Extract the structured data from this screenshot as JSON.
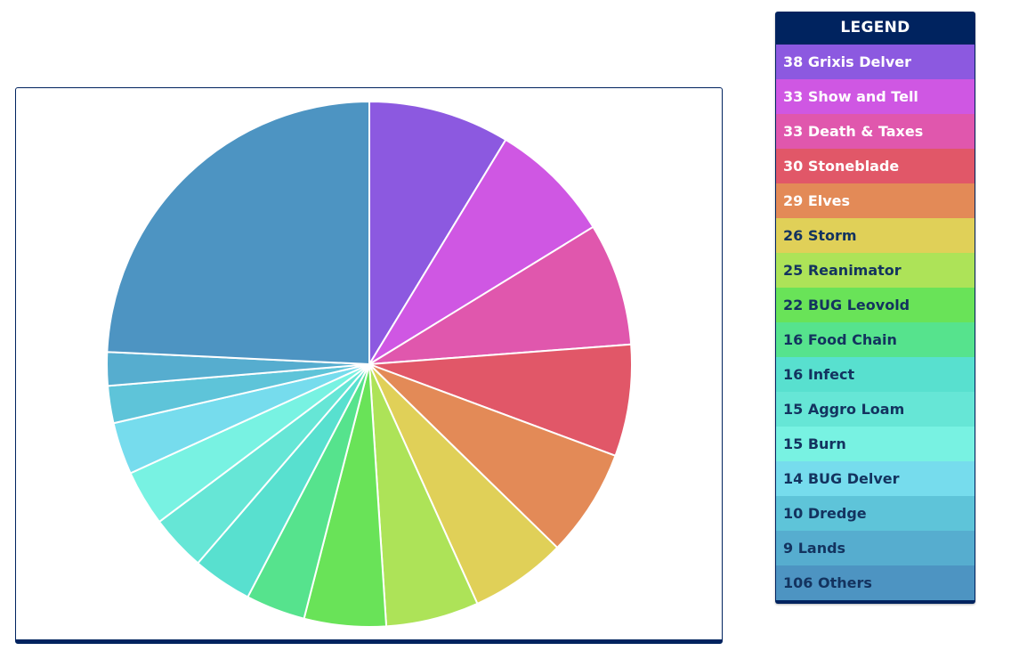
{
  "chart_data": {
    "type": "pie",
    "title": "",
    "legend_title": "LEGEND",
    "legend_position": "right",
    "slices": [
      {
        "label": "38 Grixis Delver",
        "value": 38,
        "color": "#8c59e0",
        "legend_text": "light"
      },
      {
        "label": "33 Show and Tell",
        "value": 33,
        "color": "#cf57e3",
        "legend_text": "light"
      },
      {
        "label": "33 Death & Taxes",
        "value": 33,
        "color": "#e057ad",
        "legend_text": "light"
      },
      {
        "label": "30 Stoneblade",
        "value": 30,
        "color": "#e15768",
        "legend_text": "light"
      },
      {
        "label": "29 Elves",
        "value": 29,
        "color": "#e38a57",
        "legend_text": "light"
      },
      {
        "label": "26 Storm",
        "value": 26,
        "color": "#e0d058",
        "legend_text": "dark"
      },
      {
        "label": "25 Reanimator",
        "value": 25,
        "color": "#ade358",
        "legend_text": "dark"
      },
      {
        "label": "22 BUG Leovold",
        "value": 22,
        "color": "#69e358",
        "legend_text": "dark"
      },
      {
        "label": "16 Food Chain",
        "value": 16,
        "color": "#56e38d",
        "legend_text": "dark"
      },
      {
        "label": "16 Infect",
        "value": 16,
        "color": "#58e0cf",
        "legend_text": "dark"
      },
      {
        "label": "15 Aggro Loam",
        "value": 15,
        "color": "#66e6d6",
        "legend_text": "dark"
      },
      {
        "label": "15 Burn",
        "value": 15,
        "color": "#78f2e2",
        "legend_text": "dark"
      },
      {
        "label": "14 BUG Delver",
        "value": 14,
        "color": "#76dced",
        "legend_text": "dark"
      },
      {
        "label": "10 Dredge",
        "value": 10,
        "color": "#5ec4d9",
        "legend_text": "dark"
      },
      {
        "label": "9 Lands",
        "value": 9,
        "color": "#56adcf",
        "legend_text": "dark"
      },
      {
        "label": "106 Others",
        "value": 106,
        "color": "#4d94c2",
        "legend_text": "dark"
      }
    ]
  }
}
